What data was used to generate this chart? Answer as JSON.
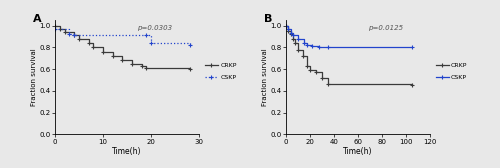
{
  "panel_A": {
    "label": "A",
    "pvalue": "p=0.0303",
    "xlabel": "Time(h)",
    "ylabel": "Fraction survival",
    "xlim": [
      0,
      30
    ],
    "ylim": [
      0.0,
      1.05
    ],
    "xticks": [
      0,
      10,
      20,
      30
    ],
    "yticks": [
      0.0,
      0.2,
      0.4,
      0.6,
      0.8,
      1.0
    ],
    "CRKP": {
      "x": [
        0,
        1,
        2,
        4,
        5,
        7,
        8,
        10,
        12,
        14,
        16,
        18,
        19,
        28
      ],
      "y": [
        1.0,
        0.97,
        0.94,
        0.91,
        0.88,
        0.84,
        0.8,
        0.76,
        0.72,
        0.68,
        0.65,
        0.63,
        0.61,
        0.6
      ],
      "color": "#3a3a3a",
      "linestyle": "-"
    },
    "CSKP": {
      "x": [
        0,
        3,
        4,
        19,
        20,
        28
      ],
      "y": [
        0.97,
        0.92,
        0.91,
        0.91,
        0.84,
        0.82
      ],
      "color": "#2244cc",
      "linestyle": ":"
    }
  },
  "panel_B": {
    "label": "B",
    "pvalue": "p=0.0125",
    "xlabel": "Time(h)",
    "ylabel": "Fraction survival",
    "xlim": [
      0,
      120
    ],
    "ylim": [
      0.0,
      1.05
    ],
    "xticks": [
      0,
      20,
      40,
      60,
      80,
      100,
      120
    ],
    "yticks": [
      0.0,
      0.2,
      0.4,
      0.6,
      0.8,
      1.0
    ],
    "CRKP": {
      "x": [
        0,
        2,
        4,
        6,
        8,
        10,
        14,
        18,
        20,
        25,
        30,
        35,
        105
      ],
      "y": [
        1.0,
        0.95,
        0.92,
        0.88,
        0.84,
        0.78,
        0.72,
        0.63,
        0.59,
        0.57,
        0.52,
        0.46,
        0.45
      ],
      "color": "#3a3a3a",
      "linestyle": "-"
    },
    "CSKP": {
      "x": [
        0,
        2,
        4,
        6,
        10,
        15,
        18,
        22,
        28,
        35,
        105
      ],
      "y": [
        1.0,
        0.97,
        0.93,
        0.91,
        0.88,
        0.84,
        0.82,
        0.81,
        0.8,
        0.8,
        0.8
      ],
      "color": "#2244cc",
      "linestyle": "-"
    }
  },
  "background_color": "#e8e8e8",
  "legend_CRKP": "CRKP",
  "legend_CSKP": "CSKP"
}
